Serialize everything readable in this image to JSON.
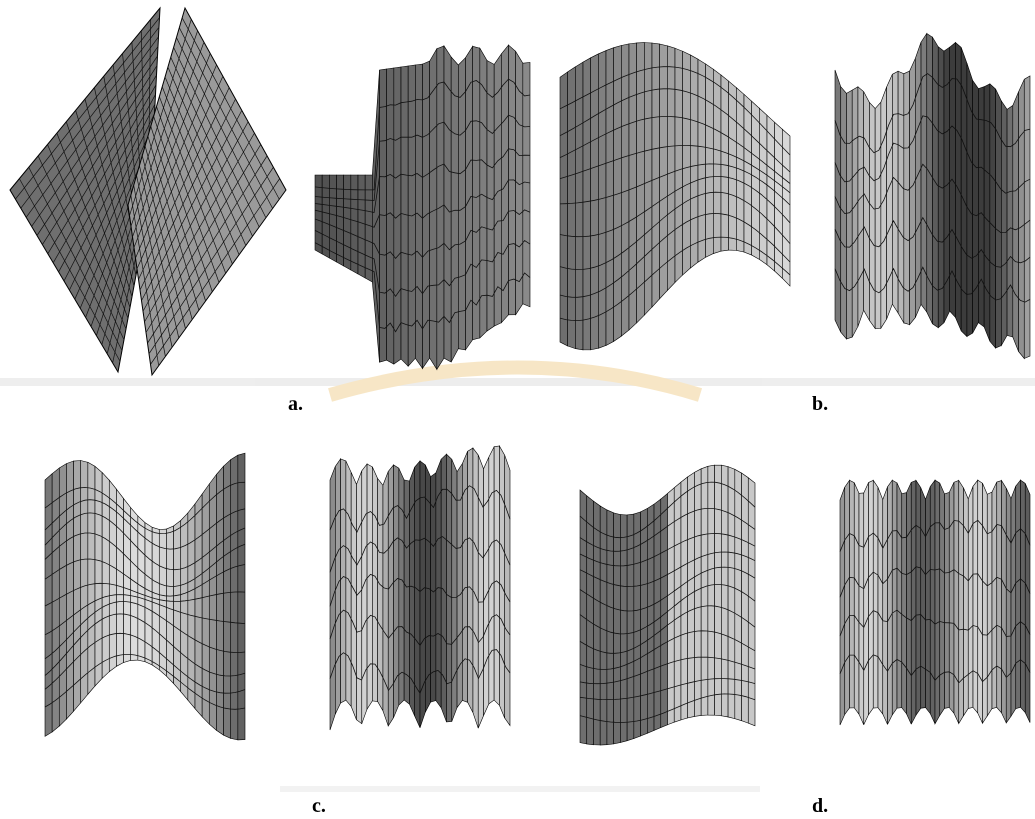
{
  "figure": {
    "labels": [
      "a.",
      "b.",
      "c.",
      "d."
    ]
  }
}
